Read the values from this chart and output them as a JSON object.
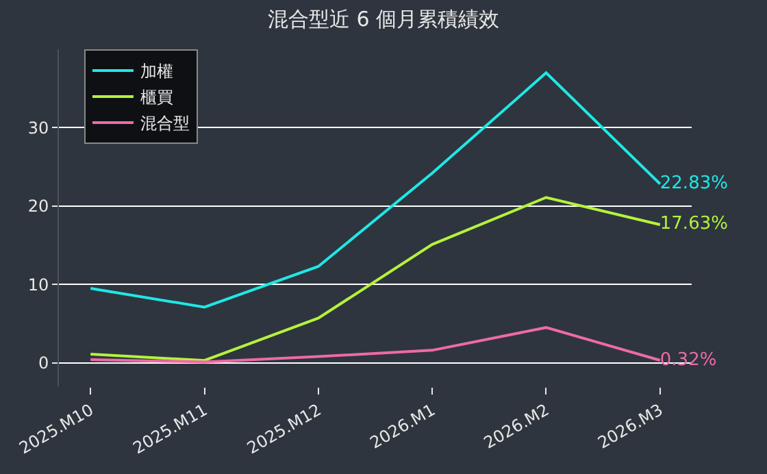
{
  "chart_data": {
    "type": "line",
    "title": "混合型近 6 個月累積績效",
    "categories": [
      "2025.M10",
      "2025.M11",
      "2025.M12",
      "2026.M1",
      "2026.M2",
      "2026.M3"
    ],
    "series": [
      {
        "name": "加權",
        "color": "#1ee8e6",
        "values": [
          9.5,
          7.1,
          12.3,
          24.2,
          37.0,
          22.83
        ],
        "value_labels": [
          null,
          null,
          null,
          null,
          null,
          "22.83%"
        ]
      },
      {
        "name": "櫃買",
        "color": "#b5f23c",
        "values": [
          1.1,
          0.3,
          5.7,
          15.1,
          21.1,
          17.63
        ],
        "value_labels": [
          null,
          null,
          null,
          null,
          null,
          "17.63%"
        ]
      },
      {
        "name": "混合型",
        "color": "#ee6aa7",
        "values": [
          0.4,
          0.1,
          0.8,
          1.6,
          4.5,
          0.32
        ],
        "value_labels": [
          null,
          null,
          null,
          null,
          null,
          "0.32%"
        ]
      }
    ],
    "ylim": [
      -3,
      40
    ],
    "yticks": [
      0,
      10,
      20,
      30
    ],
    "grid": "y",
    "legend": "top left",
    "marker": "none",
    "line_style": "solid"
  }
}
